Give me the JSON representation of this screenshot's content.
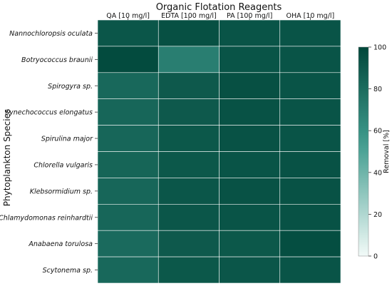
{
  "chart_data": {
    "type": "heatmap",
    "title": "Organic Flotation Reagents",
    "ylabel": "Phytoplankton Species",
    "columns": [
      "QA [10 mg/l]",
      "EDTA [100 mg/l]",
      "PA [100 mg/l]",
      "OHA [10 mg/l]"
    ],
    "rows": [
      "Nannochloropsis oculata",
      "Botryococcus braunii",
      "Spirogyra sp.",
      "Synechococcus elongatus",
      "Spirulina major",
      "Chlorella vulgaris",
      "Klebsormidium sp.",
      "Chlamydomonas reinhardtii",
      "Anabaena torulosa",
      "Scytonema sp."
    ],
    "values": [
      [
        92,
        95,
        93,
        93
      ],
      [
        98,
        70,
        93,
        93
      ],
      [
        82,
        90,
        95,
        93
      ],
      [
        83,
        90,
        94,
        93
      ],
      [
        83,
        91,
        94,
        93
      ],
      [
        84,
        91,
        93,
        94
      ],
      [
        83,
        92,
        94,
        94
      ],
      [
        83,
        92,
        93,
        94
      ],
      [
        81,
        90,
        91,
        96
      ],
      [
        82,
        91,
        92,
        93
      ]
    ],
    "colorbar": {
      "label": "Removal [%]",
      "range": [
        0,
        100
      ],
      "ticks": [
        "0",
        "20",
        "40",
        "60",
        "80",
        "100"
      ]
    },
    "colors": {
      "low": "#f2faf8",
      "mid": "#3d9a8c",
      "high": "#00473a"
    }
  }
}
